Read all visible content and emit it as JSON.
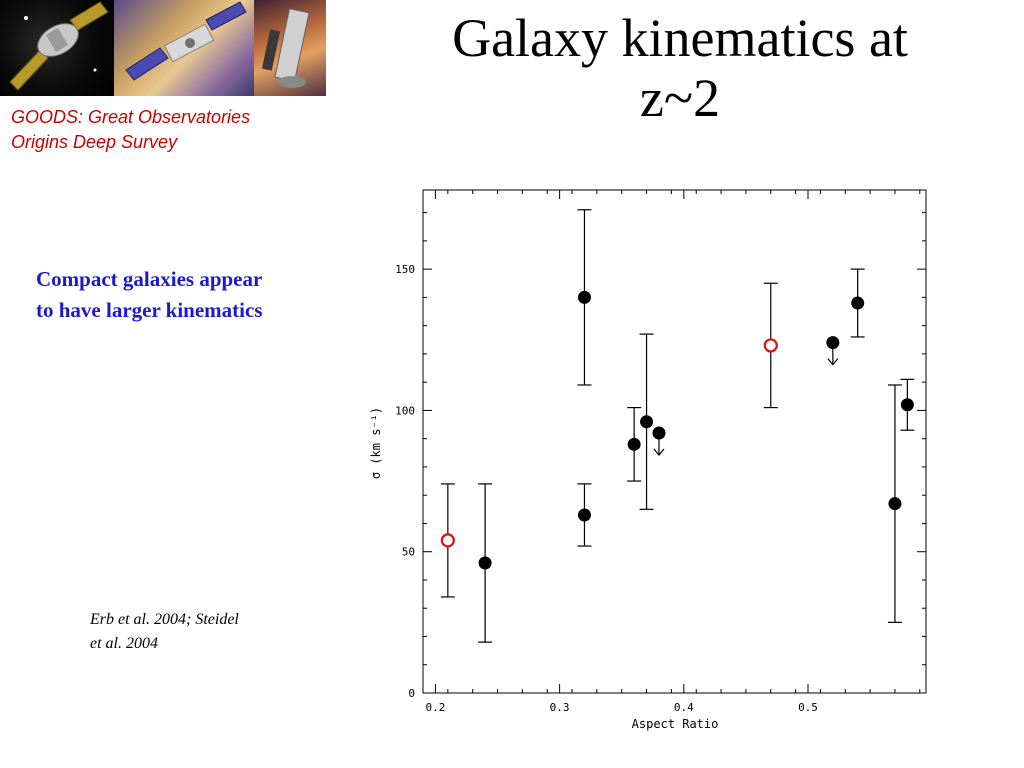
{
  "slide": {
    "title_line1": "Galaxy kinematics at",
    "title_line2": "z~2",
    "goods_line1": "GOODS: Great Observatories",
    "goods_line2": "Origins Deep Survey",
    "note_line1": "Compact galaxies appear",
    "note_line2": "to have larger kinematics",
    "cite_line1": "Erb et al. 2004; Steidel",
    "cite_line2": "et al. 2004"
  },
  "chart_data": {
    "type": "scatter",
    "xlabel": "Aspect Ratio",
    "ylabel": "σ (km s⁻¹)",
    "xlim": [
      0.19,
      0.595
    ],
    "ylim": [
      0,
      178
    ],
    "xticks": [
      0.2,
      0.3,
      0.4,
      0.5
    ],
    "xtick_labels": [
      "0.2",
      "0.3",
      "0.4",
      "0.5"
    ],
    "yticks": [
      0,
      50,
      100,
      150
    ],
    "ytick_labels": [
      "0",
      "50",
      "100",
      "150"
    ],
    "grid": false,
    "legend": "none",
    "colors": {
      "filled": "#000000",
      "open": "#dd1111"
    },
    "points": [
      {
        "x": 0.21,
        "y": 54,
        "lo": 34,
        "hi": 74,
        "marker": "open",
        "upper_limit": false
      },
      {
        "x": 0.24,
        "y": 46,
        "lo": 18,
        "hi": 74,
        "marker": "filled",
        "upper_limit": false
      },
      {
        "x": 0.32,
        "y": 140,
        "lo": 109,
        "hi": 171,
        "marker": "filled",
        "upper_limit": false
      },
      {
        "x": 0.32,
        "y": 63,
        "lo": 52,
        "hi": 74,
        "marker": "filled",
        "upper_limit": false
      },
      {
        "x": 0.36,
        "y": 88,
        "lo": 75,
        "hi": 101,
        "marker": "filled",
        "upper_limit": false
      },
      {
        "x": 0.37,
        "y": 96,
        "lo": 65,
        "hi": 127,
        "marker": "filled",
        "upper_limit": false
      },
      {
        "x": 0.38,
        "y": 92,
        "marker": "filled",
        "upper_limit": true
      },
      {
        "x": 0.47,
        "y": 123,
        "lo": 101,
        "hi": 145,
        "marker": "open",
        "upper_limit": false
      },
      {
        "x": 0.52,
        "y": 124,
        "marker": "filled",
        "upper_limit": true
      },
      {
        "x": 0.54,
        "y": 138,
        "lo": 126,
        "hi": 150,
        "marker": "filled",
        "upper_limit": false
      },
      {
        "x": 0.57,
        "y": 67,
        "lo": 25,
        "hi": 109,
        "marker": "filled",
        "upper_limit": false
      },
      {
        "x": 0.58,
        "y": 102,
        "lo": 93,
        "hi": 111,
        "marker": "filled",
        "upper_limit": false
      }
    ]
  }
}
